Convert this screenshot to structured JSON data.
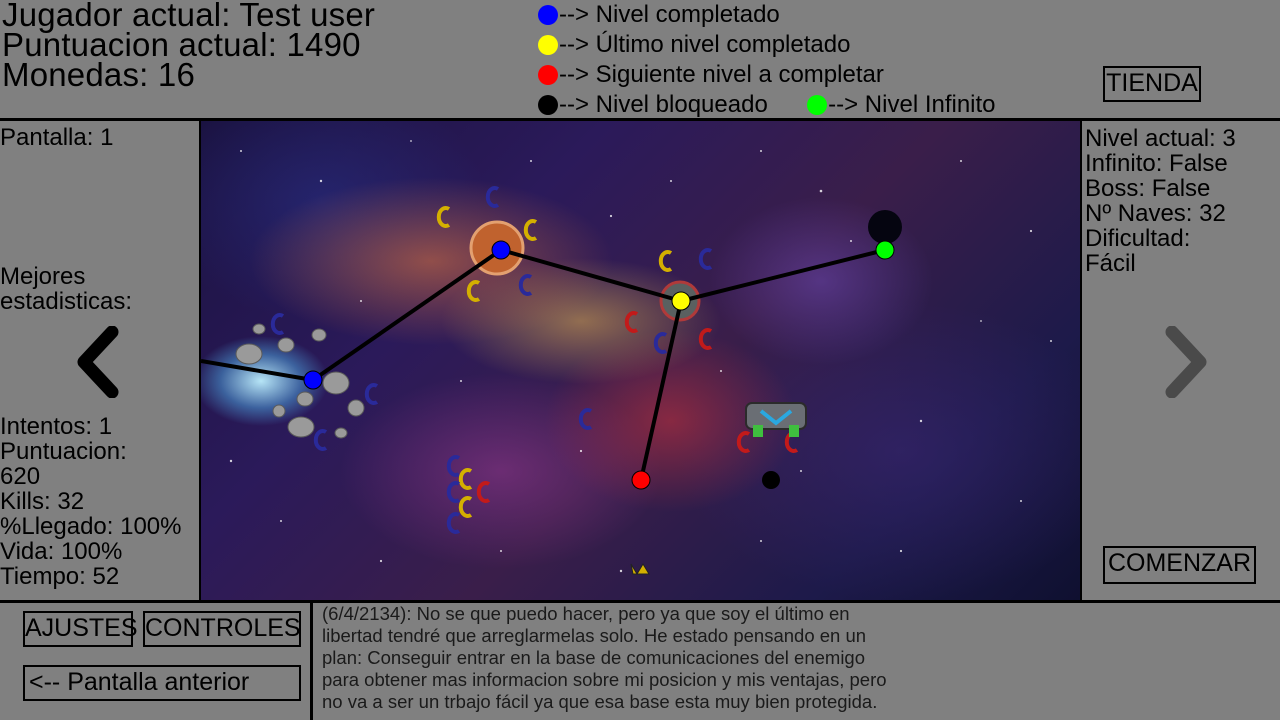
{
  "player": {
    "name_line": "Jugador actual: Test user",
    "score_line": "Puntuacion actual: 1490",
    "coins_line": "Monedas: 16"
  },
  "legend": {
    "completed": {
      "color": "#0000ff",
      "label": "--> Nivel completado"
    },
    "last_completed": {
      "color": "#ffff00",
      "label": "--> Último nivel completado"
    },
    "next": {
      "color": "#ff0000",
      "label": "--> Siguiente nivel a completar"
    },
    "locked": {
      "color": "#000000",
      "label": "--> Nivel bloqueado"
    },
    "infinite": {
      "color": "#00ff00",
      "label": "--> Nivel Infinito"
    }
  },
  "buttons": {
    "shop": "TIENDA",
    "start": "COMENZAR",
    "settings": "AJUSTES",
    "controls": "CONTROLES",
    "prev_screen": "<-- Pantalla anterior"
  },
  "left_panel": {
    "screen": "Pantalla: 1",
    "best_stats_1": "Mejores",
    "best_stats_2": "estadisticas:",
    "attempts": "Intentos: 1",
    "score_label": "Puntuacion:",
    "score_value": "620",
    "kills": "Kills: 32",
    "reached": "%Llegado: 100%",
    "life": "Vida: 100%",
    "time": "Tiempo: 52"
  },
  "right_panel": {
    "level": "Nivel actual: 3",
    "infinite": "Infinito: False",
    "boss": "Boss: False",
    "ships": "Nº Naves: 32",
    "difficulty_label": "Dificultad:",
    "difficulty_value": "Fácil"
  },
  "story": {
    "line1": "(6/4/2134): No se que puedo hacer, pero ya que soy el último en",
    "line2": "libertad tendré que arreglarmelas solo. He estado pensando en un",
    "line3": "plan: Conseguir entrar en la base de comunicaciones del enemigo",
    "line4": "para obtener mas informacion sobre mi posicion y mis ventajas, pero",
    "line5": "no va a ser un trbajo fácil ya que esa base esta muy bien protegida."
  },
  "map_levels": [
    {
      "id": 1,
      "status": "completed"
    },
    {
      "id": 2,
      "status": "completed"
    },
    {
      "id": 3,
      "status": "last_completed"
    },
    {
      "id": 4,
      "status": "next"
    },
    {
      "id": 5,
      "status": "infinite"
    },
    {
      "id": 6,
      "status": "locked"
    }
  ],
  "icons": {
    "prev_arrow": "chevron-left-icon",
    "next_arrow": "chevron-right-icon"
  }
}
